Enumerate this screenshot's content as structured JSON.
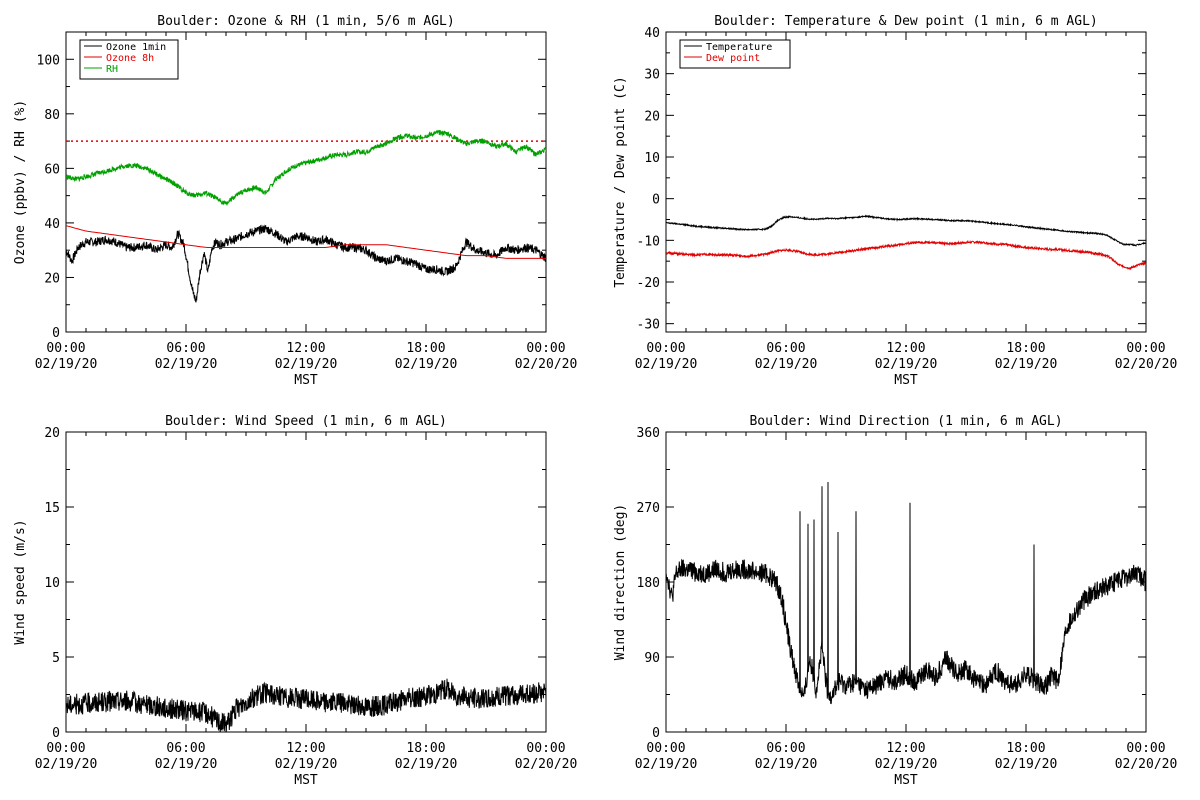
{
  "colors": {
    "black": "#000000",
    "red": "#e00000",
    "green": "#00a000"
  },
  "chart_data": [
    {
      "id": "ozone",
      "type": "line",
      "title": "Boulder: Ozone & RH (1 min, 5/6 m AGL)",
      "xlabel": "MST",
      "ylabel": "Ozone (ppbv) / RH (%)",
      "xlim": [
        0,
        24
      ],
      "ylim": [
        0,
        110
      ],
      "yticks": [
        0,
        20,
        40,
        60,
        80,
        100
      ],
      "xtick_labels": [
        [
          "00:00",
          "02/19/20"
        ],
        [
          "06:00",
          "02/19/20"
        ],
        [
          "12:00",
          "02/19/20"
        ],
        [
          "18:00",
          "02/19/20"
        ],
        [
          "00:00",
          "02/20/20"
        ]
      ],
      "reference_line": {
        "y": 70,
        "color": "#e00000",
        "style": "dotted"
      },
      "legend": {
        "position": "top-left",
        "entries": [
          "Ozone 1min",
          "Ozone 8h",
          "RH"
        ]
      },
      "series": [
        {
          "name": "Ozone 1min",
          "color": "#000000",
          "noise": 1.6,
          "x": [
            0,
            0.3,
            0.6,
            1,
            1.5,
            2,
            2.5,
            3,
            3.5,
            4,
            4.5,
            5,
            5.3,
            5.6,
            5.9,
            6.1,
            6.3,
            6.5,
            6.7,
            6.9,
            7.1,
            7.3,
            7.5,
            7.7,
            8,
            8.5,
            9,
            9.5,
            10,
            10.5,
            11,
            11.5,
            12,
            12.5,
            13,
            13.5,
            14,
            14.5,
            15,
            15.5,
            16,
            16.5,
            17,
            17.5,
            18,
            18.5,
            19,
            19.5,
            20,
            20.5,
            21,
            21.5,
            22,
            22.5,
            23,
            23.5,
            24
          ],
          "y": [
            30,
            26,
            31,
            33,
            33,
            34,
            33,
            31,
            31,
            32,
            30,
            32,
            31,
            36,
            32,
            24,
            16,
            11,
            22,
            29,
            22,
            31,
            33,
            32,
            33,
            34,
            36,
            37,
            38,
            36,
            33,
            35,
            35,
            33,
            34,
            32,
            31,
            31,
            30,
            27,
            26,
            27,
            26,
            25,
            23,
            23,
            22,
            24,
            33,
            30,
            29,
            28,
            31,
            30,
            31,
            30,
            27
          ]
        },
        {
          "name": "Ozone 8h",
          "color": "#e00000",
          "noise": 0,
          "x": [
            0,
            1,
            2,
            3,
            4,
            5,
            6,
            7,
            8,
            9,
            10,
            11,
            12,
            13,
            14,
            15,
            16,
            17,
            18,
            19,
            20,
            21,
            22,
            23,
            24
          ],
          "y": [
            39,
            37,
            36,
            35,
            34,
            33,
            32,
            31,
            31,
            31,
            31,
            31,
            31,
            31,
            32,
            32,
            32,
            31,
            30,
            29,
            28,
            28,
            27,
            27,
            27
          ]
        },
        {
          "name": "RH",
          "color": "#00a000",
          "noise": 0.9,
          "x": [
            0,
            0.5,
            1,
            1.5,
            2,
            2.5,
            3,
            3.5,
            4,
            4.5,
            5,
            5.5,
            6,
            6.5,
            7,
            7.5,
            8,
            8.5,
            9,
            9.5,
            10,
            10.5,
            11,
            11.5,
            12,
            12.5,
            13,
            13.5,
            14,
            14.5,
            15,
            15.5,
            16,
            16.5,
            17,
            17.5,
            18,
            18.5,
            19,
            19.5,
            20,
            20.5,
            21,
            21.5,
            22,
            22.5,
            23,
            23.5,
            24
          ],
          "y": [
            57,
            56,
            57,
            58,
            59,
            60,
            61,
            61,
            60,
            58,
            56,
            54,
            51,
            50,
            51,
            49,
            47,
            50,
            52,
            53,
            51,
            56,
            59,
            61,
            62,
            63,
            64,
            65,
            65,
            66,
            66,
            68,
            69,
            71,
            72,
            71,
            72,
            73,
            73,
            71,
            69,
            70,
            70,
            68,
            69,
            66,
            68,
            65,
            67
          ]
        }
      ]
    },
    {
      "id": "temp",
      "type": "line",
      "title": "Boulder: Temperature & Dew point (1 min, 6 m AGL)",
      "xlabel": "MST",
      "ylabel": "Temperature / Dew point (C)",
      "xlim": [
        0,
        24
      ],
      "ylim": [
        -32,
        40
      ],
      "yticks": [
        -30,
        -20,
        -10,
        0,
        10,
        20,
        30,
        40
      ],
      "xtick_labels": [
        [
          "00:00",
          "02/19/20"
        ],
        [
          "06:00",
          "02/19/20"
        ],
        [
          "12:00",
          "02/19/20"
        ],
        [
          "18:00",
          "02/19/20"
        ],
        [
          "00:00",
          "02/20/20"
        ]
      ],
      "legend": {
        "position": "top-left",
        "entries": [
          "Temperature",
          "Dew point"
        ]
      },
      "series": [
        {
          "name": "Temperature",
          "color": "#000000",
          "noise": 0.15,
          "x": [
            0,
            0.5,
            1,
            1.5,
            2,
            2.5,
            3,
            3.5,
            4,
            4.5,
            5,
            5.3,
            5.6,
            5.9,
            6.2,
            6.5,
            7,
            7.5,
            8,
            8.5,
            9,
            9.5,
            10,
            10.5,
            11,
            11.5,
            12,
            12.5,
            13,
            13.5,
            14,
            14.5,
            15,
            15.5,
            16,
            16.5,
            17,
            17.5,
            18,
            18.5,
            19,
            19.5,
            20,
            20.5,
            21,
            21.5,
            22,
            22.3,
            22.6,
            22.9,
            23.2,
            23.5,
            24
          ],
          "y": [
            -5.8,
            -6,
            -6.3,
            -6.6,
            -6.8,
            -7,
            -7.1,
            -7.3,
            -7.4,
            -7.4,
            -7.3,
            -6.5,
            -5.2,
            -4.5,
            -4.3,
            -4.5,
            -4.8,
            -5,
            -4.7,
            -4.8,
            -4.6,
            -4.5,
            -4.2,
            -4.5,
            -4.8,
            -5,
            -4.9,
            -4.8,
            -4.9,
            -5,
            -5.2,
            -5.3,
            -5.3,
            -5.5,
            -5.7,
            -6,
            -6.2,
            -6.4,
            -6.8,
            -7,
            -7.3,
            -7.5,
            -7.8,
            -8,
            -8.2,
            -8.3,
            -8.7,
            -9.5,
            -10.3,
            -11,
            -11,
            -11.2,
            -10.6
          ]
        },
        {
          "name": "Dew point",
          "color": "#e00000",
          "noise": 0.25,
          "x": [
            0,
            0.5,
            1,
            1.5,
            2,
            2.5,
            3,
            3.5,
            4,
            4.5,
            5,
            5.5,
            6,
            6.5,
            7,
            7.5,
            8,
            8.5,
            9,
            9.5,
            10,
            10.5,
            11,
            11.5,
            12,
            12.5,
            13,
            13.5,
            14,
            14.5,
            15,
            15.5,
            16,
            16.5,
            17,
            17.5,
            18,
            18.5,
            19,
            19.5,
            20,
            20.5,
            21,
            21.5,
            22,
            22.3,
            22.6,
            22.9,
            23.2,
            23.5,
            24
          ],
          "y": [
            -13,
            -13.2,
            -13.4,
            -13.5,
            -13.4,
            -13.5,
            -13.5,
            -13.6,
            -13.8,
            -13.7,
            -13.3,
            -12.6,
            -12.3,
            -12.6,
            -13.2,
            -13.5,
            -13.3,
            -13,
            -12.7,
            -12.4,
            -12,
            -11.8,
            -11.4,
            -11.2,
            -10.8,
            -10.6,
            -10.5,
            -10.6,
            -10.8,
            -10.7,
            -10.5,
            -10.4,
            -10.6,
            -10.9,
            -11,
            -11.4,
            -11.7,
            -11.9,
            -12.1,
            -12.2,
            -12.4,
            -12.6,
            -12.8,
            -13.2,
            -13.6,
            -14.5,
            -15.8,
            -16.3,
            -16.7,
            -16.1,
            -15.4
          ]
        }
      ]
    },
    {
      "id": "wspd",
      "type": "line",
      "title": "Boulder: Wind Speed (1 min, 6 m AGL)",
      "xlabel": "MST",
      "ylabel": "Wind speed (m/s)",
      "xlim": [
        0,
        24
      ],
      "ylim": [
        0,
        20
      ],
      "yticks": [
        0,
        5,
        10,
        15,
        20
      ],
      "xtick_labels": [
        [
          "00:00",
          "02/19/20"
        ],
        [
          "06:00",
          "02/19/20"
        ],
        [
          "12:00",
          "02/19/20"
        ],
        [
          "18:00",
          "02/19/20"
        ],
        [
          "00:00",
          "02/20/20"
        ]
      ],
      "series": [
        {
          "name": "",
          "color": "#000000",
          "noise": 0.7,
          "x": [
            0,
            1,
            2,
            3,
            4,
            5,
            6,
            7,
            7.5,
            8,
            8.5,
            9,
            9.5,
            10,
            11,
            12,
            13,
            14,
            15,
            16,
            17,
            18,
            18.5,
            19,
            19.5,
            20,
            21,
            22,
            23,
            24
          ],
          "y": [
            1.8,
            1.9,
            2,
            2.1,
            1.8,
            1.6,
            1.4,
            1.3,
            0.8,
            0.5,
            1.5,
            2,
            2.4,
            2.6,
            2.3,
            2.2,
            2,
            1.9,
            1.7,
            1.8,
            2.2,
            2.4,
            2.6,
            2.9,
            2.5,
            2.3,
            2.2,
            2.4,
            2.5,
            2.7
          ]
        }
      ]
    },
    {
      "id": "wdir",
      "type": "line",
      "title": "Boulder: Wind Direction (1 min, 6 m AGL)",
      "xlabel": "MST",
      "ylabel": "Wind direction (deg)",
      "xlim": [
        0,
        24
      ],
      "ylim": [
        0,
        360
      ],
      "yticks": [
        0,
        90,
        180,
        270,
        360
      ],
      "xtick_labels": [
        [
          "00:00",
          "02/19/20"
        ],
        [
          "06:00",
          "02/19/20"
        ],
        [
          "12:00",
          "02/19/20"
        ],
        [
          "18:00",
          "02/19/20"
        ],
        [
          "00:00",
          "02/20/20"
        ]
      ],
      "series": [
        {
          "name": "",
          "color": "#000000",
          "noise": 12,
          "x": [
            0,
            0.3,
            0.5,
            0.8,
            1,
            1.5,
            2,
            2.5,
            3,
            3.5,
            4,
            4.5,
            5,
            5.5,
            5.8,
            6,
            6.3,
            6.6,
            6.9,
            7.2,
            7.5,
            7.8,
            8.1,
            8.4,
            8.7,
            9,
            9.5,
            10,
            10.5,
            11,
            11.5,
            12,
            12.5,
            13,
            13.5,
            14,
            14.5,
            15,
            15.5,
            16,
            16.5,
            17,
            17.5,
            18,
            18.5,
            19,
            19.3,
            19.6,
            20,
            20.5,
            21,
            21.5,
            22,
            22.5,
            23,
            23.5,
            24
          ],
          "y": [
            195,
            160,
            190,
            195,
            195,
            192,
            190,
            195,
            192,
            195,
            195,
            192,
            190,
            180,
            160,
            130,
            90,
            60,
            40,
            90,
            50,
            100,
            40,
            50,
            60,
            55,
            60,
            50,
            55,
            65,
            60,
            70,
            60,
            75,
            65,
            90,
            70,
            75,
            60,
            55,
            75,
            60,
            55,
            70,
            60,
            55,
            70,
            60,
            125,
            145,
            160,
            170,
            175,
            180,
            185,
            190,
            180
          ],
          "spikes": [
            [
              6.7,
              265
            ],
            [
              7.1,
              250
            ],
            [
              7.4,
              255
            ],
            [
              7.8,
              295
            ],
            [
              8.1,
              300
            ],
            [
              8.6,
              240
            ],
            [
              9.5,
              265
            ],
            [
              12.2,
              275
            ],
            [
              18.4,
              225
            ]
          ]
        }
      ]
    }
  ]
}
